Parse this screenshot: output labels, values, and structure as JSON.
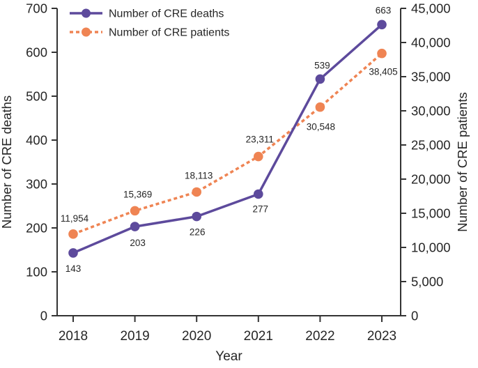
{
  "chart_data": {
    "type": "line",
    "title": "",
    "x": {
      "label": "Year",
      "categories": [
        "2018",
        "2019",
        "2020",
        "2021",
        "2022",
        "2023"
      ]
    },
    "left_axis": {
      "label": "Number of CRE deaths",
      "min": 0,
      "max": 700,
      "step": 100
    },
    "right_axis": {
      "label": "Number of CRE patients",
      "min": 0,
      "max": 45000,
      "step": 5000
    },
    "series": [
      {
        "name": "Number of CRE deaths",
        "axis": "left",
        "color": "#5D4A9C",
        "style": "solid",
        "values": [
          143,
          203,
          226,
          277,
          539,
          663
        ],
        "labels": [
          "143",
          "203",
          "226",
          "277",
          "539",
          "663"
        ]
      },
      {
        "name": "Number of CRE patients",
        "axis": "right",
        "color": "#EF8453",
        "style": "dashed",
        "values": [
          11954,
          15369,
          18113,
          23311,
          30548,
          38405
        ],
        "labels": [
          "11,954",
          "15,369",
          "18,113",
          "23,311",
          "30,548",
          "38,405"
        ]
      }
    ],
    "legend": {
      "position": "top-left"
    },
    "grid": false,
    "axis_color": "#333333",
    "text_color": "#262626",
    "background_color": "#ffffff"
  }
}
